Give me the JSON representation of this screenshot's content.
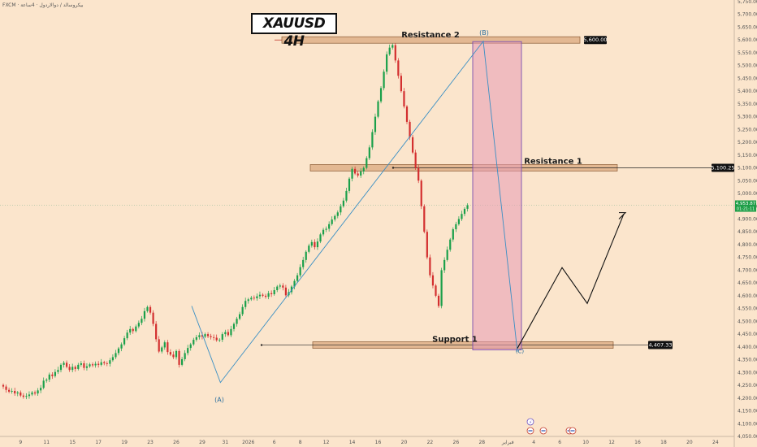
{
  "header": {
    "symbol_info": "FXCM · بيكروسالد / دوالاردول · 4ساعة"
  },
  "chart_title": "XAUUSD 4H",
  "colors": {
    "background": "#fbe5cc",
    "up": "#1aa04a",
    "down": "#d32f2f",
    "zone_fill": "#e3b892",
    "zone_stroke": "#8a5a34",
    "rect_fill": "#e79bb4",
    "rect_stroke": "#7a4fb0",
    "wave_line": "#3a8fc4",
    "price_badge": "#111111",
    "last_price_badge": "#1e9e48"
  },
  "chart_data": {
    "type": "candlestick",
    "ylim": [
      4050,
      5750
    ],
    "y_ticks": [
      4050,
      4100,
      4150,
      4200,
      4250,
      4300,
      4350,
      4400,
      4450,
      4500,
      4550,
      4600,
      4650,
      4700,
      4750,
      4800,
      4850,
      4900,
      4950,
      5000,
      5050,
      5100,
      5150,
      5200,
      5250,
      5300,
      5350,
      5400,
      5450,
      5500,
      5550,
      5600,
      5650,
      5700,
      5750
    ],
    "y_tick_labels": [
      "4,050.00",
      "4,100.00",
      "4,150.00",
      "4,200.00",
      "4,250.00",
      "4,300.00",
      "4,350.00",
      "4,400.00",
      "4,450.00",
      "4,500.00",
      "4,550.00",
      "4,600.00",
      "4,650.00",
      "4,700.00",
      "4,750.00",
      "4,800.00",
      "4,850.00",
      "4,900.00",
      "4,950.00",
      "5,000.00",
      "5,050.00",
      "5,100.00",
      "5,150.00",
      "5,200.00",
      "5,250.00",
      "5,300.00",
      "5,350.00",
      "5,400.00",
      "5,450.00",
      "5,500.00",
      "5,550.00",
      "5,600.00",
      "5,650.00",
      "5,700.00",
      "5,750.00"
    ],
    "x_ticks": [
      {
        "label": "9",
        "i": 6
      },
      {
        "label": "11",
        "i": 15
      },
      {
        "label": "15",
        "i": 24
      },
      {
        "label": "17",
        "i": 33
      },
      {
        "label": "19",
        "i": 42
      },
      {
        "label": "23",
        "i": 51
      },
      {
        "label": "26",
        "i": 60
      },
      {
        "label": "29",
        "i": 69
      },
      {
        "label": "31",
        "i": 77
      },
      {
        "label": "2026",
        "i": 85
      },
      {
        "label": "6",
        "i": 94
      },
      {
        "label": "8",
        "i": 103
      },
      {
        "label": "12",
        "i": 112
      },
      {
        "label": "14",
        "i": 121
      },
      {
        "label": "16",
        "i": 130
      },
      {
        "label": "20",
        "i": 139
      },
      {
        "label": "22",
        "i": 148
      },
      {
        "label": "26",
        "i": 157
      },
      {
        "label": "28",
        "i": 166
      },
      {
        "label": "فبراير",
        "i": 175
      },
      {
        "label": "4",
        "i": 184
      },
      {
        "label": "6",
        "i": 193
      },
      {
        "label": "10",
        "i": 202
      },
      {
        "label": "12",
        "i": 211
      },
      {
        "label": "16",
        "i": 220
      },
      {
        "label": "18",
        "i": 229
      },
      {
        "label": "20",
        "i": 238
      },
      {
        "label": "24",
        "i": 247
      }
    ],
    "closes": [
      4245,
      4232,
      4225,
      4228,
      4218,
      4222,
      4210,
      4205,
      4208,
      4214,
      4222,
      4218,
      4230,
      4240,
      4268,
      4272,
      4292,
      4286,
      4302,
      4310,
      4330,
      4338,
      4322,
      4310,
      4322,
      4314,
      4330,
      4336,
      4318,
      4324,
      4332,
      4328,
      4334,
      4330,
      4340,
      4336,
      4334,
      4348,
      4360,
      4376,
      4394,
      4410,
      4434,
      4456,
      4470,
      4462,
      4480,
      4494,
      4510,
      4540,
      4556,
      4534,
      4490,
      4430,
      4382,
      4398,
      4418,
      4380,
      4370,
      4360,
      4384,
      4330,
      4352,
      4376,
      4396,
      4410,
      4428,
      4438,
      4446,
      4440,
      4450,
      4442,
      4438,
      4436,
      4426,
      4428,
      4450,
      4458,
      4446,
      4470,
      4490,
      4510,
      4528,
      4556,
      4580,
      4586,
      4592,
      4590,
      4598,
      4604,
      4600,
      4596,
      4610,
      4606,
      4622,
      4636,
      4640,
      4632,
      4602,
      4614,
      4636,
      4658,
      4680,
      4712,
      4740,
      4772,
      4796,
      4810,
      4790,
      4812,
      4840,
      4858,
      4862,
      4880,
      4898,
      4912,
      4926,
      4950,
      4972,
      5010,
      5058,
      5096,
      5078,
      5070,
      5086,
      5100,
      5138,
      5180,
      5240,
      5300,
      5360,
      5412,
      5476,
      5544,
      5570,
      5580,
      5520,
      5460,
      5400,
      5340,
      5280,
      5220,
      5160,
      5100,
      5050,
      4950,
      4850,
      4750,
      4680,
      4640,
      4600,
      4560,
      4700,
      4740,
      4780,
      4820,
      4860,
      4880,
      4900,
      4920,
      4940,
      4953.87
    ],
    "levels": [
      {
        "name": "Resistance 2",
        "price": 5600,
        "label": "5,600.00"
      },
      {
        "name": "Resistance 1",
        "price": 5100.25,
        "label": "5,100.25"
      },
      {
        "name": "Support 1",
        "price": 4407.33,
        "label": "4,407.33"
      }
    ],
    "wave_points": [
      {
        "label": "(A)",
        "i": 77,
        "price": 4280
      },
      {
        "label": "(B)",
        "i": 178,
        "price": 5595
      },
      {
        "label": "(C)",
        "i": 210,
        "price": 4400
      }
    ],
    "last_price": {
      "value": 4953.87,
      "label": "4,953.87",
      "countdown": "01:21:11"
    }
  }
}
